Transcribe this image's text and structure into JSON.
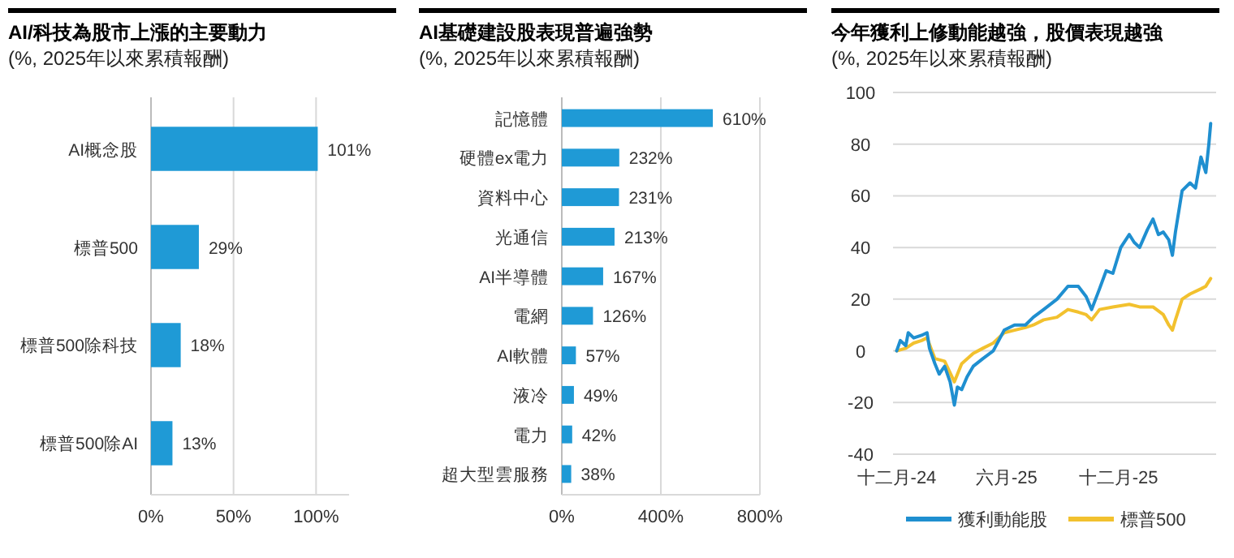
{
  "chart_data": [
    {
      "type": "bar",
      "orientation": "horizontal",
      "title": "AI/科技為股市上漲的主要動力",
      "subtitle": "(%, 2025年以來累積報酬)",
      "categories": [
        "AI概念股",
        "標普500",
        "標普500除科技",
        "標普500除AI"
      ],
      "values": [
        101,
        29,
        18,
        13
      ],
      "value_labels": [
        "101%",
        "29%",
        "18%",
        "13%"
      ],
      "color": "#1f9ad6",
      "xlim": [
        0,
        120
      ],
      "xticks": [
        {
          "value": 0,
          "label": "0%"
        },
        {
          "value": 50,
          "label": "50%"
        },
        {
          "value": 100,
          "label": "100%"
        }
      ],
      "grid": "x"
    },
    {
      "type": "bar",
      "orientation": "horizontal",
      "title": "AI基礎建設股表現普遍強勢",
      "subtitle": "(%, 2025年以來累積報酬)",
      "categories": [
        "記憶體",
        "硬體ex電力",
        "資料中心",
        "光通信",
        "AI半導體",
        "電網",
        "AI軟體",
        "液冷",
        "電力",
        "超大型雲服務"
      ],
      "values": [
        610,
        232,
        231,
        213,
        167,
        126,
        57,
        49,
        42,
        38
      ],
      "value_labels": [
        "610%",
        "232%",
        "231%",
        "213%",
        "167%",
        "126%",
        "57%",
        "49%",
        "42%",
        "38%"
      ],
      "color": "#1f9ad6",
      "xlim": [
        0,
        800
      ],
      "xticks": [
        {
          "value": 0,
          "label": "0%"
        },
        {
          "value": 400,
          "label": "400%"
        },
        {
          "value": 800,
          "label": "800%"
        }
      ],
      "grid": "x"
    },
    {
      "type": "line",
      "title": "今年獲利上修動能越強，股價表現越強",
      "subtitle": "(%, 2025年以來累積報酬)",
      "xlim": [
        "2024-12-25",
        "2026-06-10"
      ],
      "xticks": [
        {
          "value": "2024-12-31",
          "label": "十二月-24"
        },
        {
          "value": "2025-06-30",
          "label": "六月-25"
        },
        {
          "value": "2025-12-31",
          "label": "十二月-25"
        }
      ],
      "ylim": [
        -40,
        100
      ],
      "yticks": [
        -40,
        -20,
        0,
        20,
        40,
        60,
        80,
        100
      ],
      "grid": "y",
      "legend": "bottom",
      "series": [
        {
          "name": "獲利動能股",
          "color": "#1f8fd0",
          "x": [
            "2024-12-31",
            "2025-01-06",
            "2025-01-15",
            "2025-01-19",
            "2025-01-28",
            "2025-02-10",
            "2025-02-19",
            "2025-02-23",
            "2025-03-04",
            "2025-03-11",
            "2025-03-20",
            "2025-03-29",
            "2025-04-05",
            "2025-04-10",
            "2025-04-17",
            "2025-04-26",
            "2025-05-06",
            "2025-05-22",
            "2025-06-08",
            "2025-06-26",
            "2025-07-13",
            "2025-07-31",
            "2025-08-13",
            "2025-08-30",
            "2025-09-21",
            "2025-10-09",
            "2025-10-26",
            "2025-11-08",
            "2025-11-17",
            "2025-11-30",
            "2025-12-11",
            "2025-12-22",
            "2026-01-04",
            "2026-01-18",
            "2026-01-26",
            "2026-02-04",
            "2026-02-17",
            "2026-02-26",
            "2026-03-07",
            "2026-03-15",
            "2026-03-24",
            "2026-03-30",
            "2026-04-04",
            "2026-04-15",
            "2026-04-28",
            "2026-05-07",
            "2026-05-16",
            "2026-05-24",
            "2026-05-29",
            "2026-06-01"
          ],
          "values": [
            0,
            4,
            2,
            7,
            5,
            6,
            7,
            1,
            -5,
            -9,
            -6,
            -12,
            -21,
            -14,
            -15,
            -10,
            -6,
            -3,
            0,
            8,
            10,
            10,
            13,
            16,
            20,
            25,
            25,
            21,
            16,
            24,
            31,
            30,
            40,
            45,
            42,
            40,
            47,
            51,
            45,
            46,
            43,
            37,
            46,
            62,
            65,
            63,
            75,
            69,
            80,
            88
          ]
        },
        {
          "name": "標普500",
          "color": "#f2c12e",
          "x": [
            "2024-12-31",
            "2025-01-15",
            "2025-01-28",
            "2025-02-10",
            "2025-02-19",
            "2025-03-04",
            "2025-03-20",
            "2025-04-05",
            "2025-04-17",
            "2025-05-06",
            "2025-05-22",
            "2025-06-08",
            "2025-06-26",
            "2025-07-13",
            "2025-07-31",
            "2025-08-13",
            "2025-08-30",
            "2025-09-21",
            "2025-10-09",
            "2025-10-26",
            "2025-11-08",
            "2025-11-17",
            "2025-11-30",
            "2025-12-22",
            "2026-01-18",
            "2026-02-04",
            "2026-02-26",
            "2026-03-15",
            "2026-03-24",
            "2026-03-30",
            "2026-04-04",
            "2026-04-15",
            "2026-04-28",
            "2026-05-16",
            "2026-05-24",
            "2026-06-01"
          ],
          "values": [
            0,
            1,
            3,
            4,
            5,
            -3,
            -4,
            -12,
            -5,
            -1,
            1,
            3,
            7,
            8,
            9,
            10,
            12,
            13,
            16,
            15,
            14,
            12,
            16,
            17,
            18,
            17,
            17,
            14,
            10,
            8,
            12,
            20,
            22,
            24,
            25,
            28
          ]
        }
      ]
    }
  ]
}
